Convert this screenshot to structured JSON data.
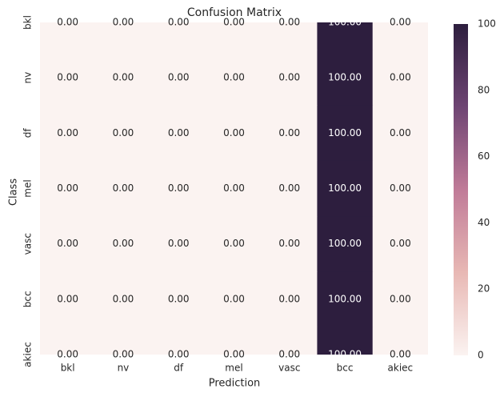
{
  "chart_data": {
    "type": "heatmap",
    "title": "Confusion Matrix",
    "x_label": "Prediction",
    "y_label": "Class",
    "x_categories": [
      "bkl",
      "nv",
      "df",
      "mel",
      "vasc",
      "bcc",
      "akiec"
    ],
    "y_categories": [
      "bkl",
      "nv",
      "df",
      "mel",
      "vasc",
      "bcc",
      "akiec"
    ],
    "values": [
      [
        0,
        0,
        0,
        0,
        0,
        100,
        0
      ],
      [
        0,
        0,
        0,
        0,
        0,
        100,
        0
      ],
      [
        0,
        0,
        0,
        0,
        0,
        100,
        0
      ],
      [
        0,
        0,
        0,
        0,
        0,
        100,
        0
      ],
      [
        0,
        0,
        0,
        0,
        0,
        100,
        0
      ],
      [
        0,
        0,
        0,
        0,
        0,
        100,
        0
      ],
      [
        0,
        0,
        0,
        0,
        0,
        100,
        0
      ]
    ],
    "value_labels": [
      [
        "0.00",
        "0.00",
        "0.00",
        "0.00",
        "0.00",
        "100.00",
        "0.00"
      ],
      [
        "0.00",
        "0.00",
        "0.00",
        "0.00",
        "0.00",
        "100.00",
        "0.00"
      ],
      [
        "0.00",
        "0.00",
        "0.00",
        "0.00",
        "0.00",
        "100.00",
        "0.00"
      ],
      [
        "0.00",
        "0.00",
        "0.00",
        "0.00",
        "0.00",
        "100.00",
        "0.00"
      ],
      [
        "0.00",
        "0.00",
        "0.00",
        "0.00",
        "0.00",
        "100.00",
        "0.00"
      ],
      [
        "0.00",
        "0.00",
        "0.00",
        "0.00",
        "0.00",
        "100.00",
        "0.00"
      ],
      [
        "0.00",
        "0.00",
        "0.00",
        "0.00",
        "0.00",
        "100.00",
        "0.00"
      ]
    ],
    "clim": [
      0,
      100
    ],
    "cticks": [
      0,
      20,
      40,
      60,
      80,
      100
    ],
    "colormap": [
      "#fbf3f1",
      "#e8b8b4",
      "#c07b98",
      "#6e4573",
      "#2d1e3e"
    ]
  }
}
